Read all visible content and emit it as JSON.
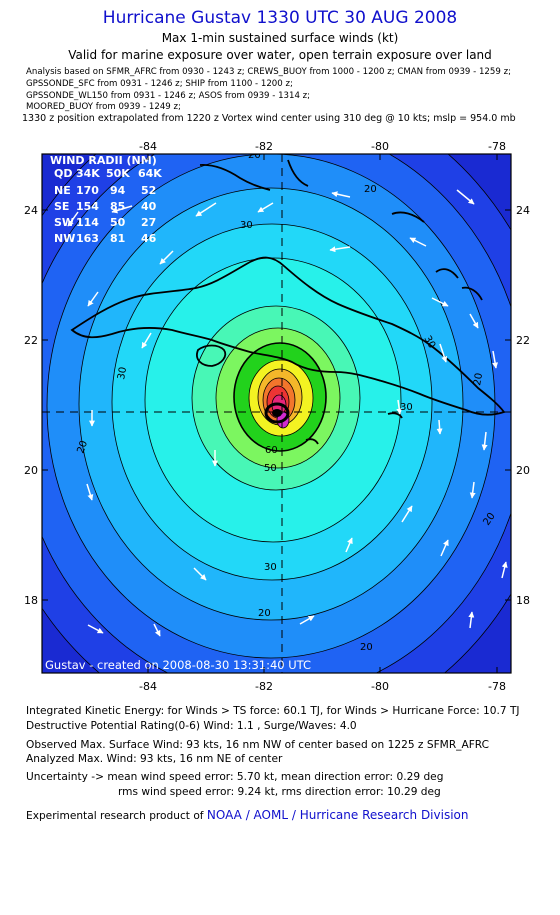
{
  "header": {
    "title": "Hurricane Gustav 1330 UTC 30 AUG 2008",
    "subtitle_line1": "Max 1-min sustained surface winds (kt)",
    "subtitle_line2": "Valid for marine exposure over water, open terrain exposure over land",
    "sources": [
      "Analysis based on  SFMR_AFRC from 0930 - 1243 z;  CREWS_BUOY from 1000 - 1200 z;  CMAN from 0939 - 1259 z;",
      "GPSSONDE_SFC from 0931 - 1246 z;  SHIP from 1100 - 1200 z;",
      "GPSSONDE_WL150 from 0931 - 1246 z;  ASOS from 0939 - 1314 z;",
      "MOORED_BUOY from 0939 - 1249 z;"
    ],
    "position_note": "1330 z position extrapolated from 1220 z Vortex wind center using 310 deg @ 10 kts; mslp = 954.0 mb"
  },
  "map": {
    "lon_ticks": [
      "-84",
      "-82",
      "-80",
      "-78"
    ],
    "lat_ticks": [
      "24",
      "22",
      "20",
      "18"
    ],
    "contour_labels": [
      "20",
      "30",
      "20",
      "30",
      "20",
      "30",
      "50",
      "60",
      "30",
      "20",
      "20",
      "20",
      "30",
      "20"
    ],
    "created_label": "Gustav - created on 2008-08-30 13:31:40 UTC",
    "wind_radii": {
      "title": "WIND RADII (NM)",
      "columns": [
        "QD",
        "34K",
        "50K",
        "64K"
      ],
      "rows": [
        [
          "NE",
          "170",
          "94",
          "52"
        ],
        [
          "SE",
          "154",
          "85",
          "40"
        ],
        [
          "SW",
          "114",
          "50",
          "27"
        ],
        [
          "NW",
          "163",
          "81",
          "46"
        ]
      ]
    },
    "colors": {
      "background_ocean": "#1a2ad2",
      "band_colors": [
        "#1f40e6",
        "#1f63f3",
        "#1f8ef9",
        "#20b6fb",
        "#22d8f8",
        "#27f1ea",
        "#48f7b6",
        "#7cf660",
        "#22d21c",
        "#f3f322",
        "#f4b72a",
        "#f2762c",
        "#ec3434",
        "#e6257a",
        "#d22ad0"
      ]
    }
  },
  "footer": {
    "ike_line": "Integrated Kinetic Energy:  for Winds > TS force: 60.1 TJ,  for Winds > Hurricane Force: 10.7 TJ",
    "dpr_line": "Destructive Potential Rating(0-6)   Wind: 1.1 , Surge/Waves: 4.0",
    "observed_line": "Observed Max. Surface Wind: 93 kts, 16 nm NW of center based on 1225 z SFMR_AFRC",
    "analyzed_line": "Analyzed Max. Wind: 93 kts, 16 nm NE of center",
    "uncertainty_line1": "Uncertainty -> mean wind speed error: 5.70 kt,   mean direction error: 0.29 deg",
    "uncertainty_line2": "rms wind speed error: 9.24 kt,   rms direction error: 10.29 deg",
    "credit_prefix": "Experimental research product of",
    "credit_link": "NOAA / AOML / Hurricane Research Division"
  }
}
